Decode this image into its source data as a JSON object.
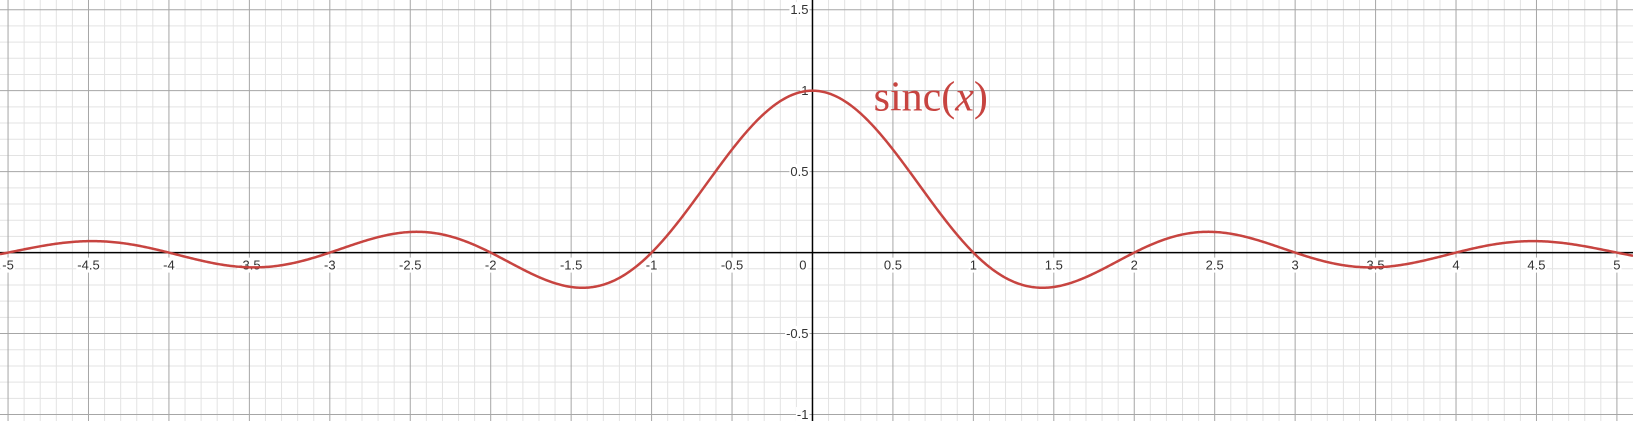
{
  "chart_data": {
    "type": "line",
    "xlim": [
      -5.05,
      5.1
    ],
    "ylim": [
      -1.04,
      1.56
    ],
    "grid": true,
    "minor_grid": true,
    "major_step": 0.5,
    "minor_step": 0.1,
    "x_ticks": [
      -5,
      -4.5,
      -4,
      -3.5,
      -3,
      -2.5,
      -2,
      -1.5,
      -1,
      -0.5,
      0,
      0.5,
      1,
      1.5,
      2,
      2.5,
      3,
      3.5,
      4,
      4.5,
      5
    ],
    "y_ticks": [
      -1,
      -0.5,
      0.5,
      1,
      1.5
    ],
    "x_tick_labels": [
      "-5",
      "-4.5",
      "-4",
      "-3.5",
      "-3",
      "-2.5",
      "-2",
      "-1.5",
      "-1",
      "-0.5",
      "0",
      "0.5",
      "1",
      "1.5",
      "2",
      "2.5",
      "3",
      "3.5",
      "4",
      "4.5",
      "5"
    ],
    "y_tick_labels": [
      "-1",
      "-0.5",
      "0.5",
      "1",
      "1.5"
    ],
    "series": [
      {
        "name": "sinc(x)",
        "function": "sin(pi*x)/(pi*x)",
        "color": "#c74440",
        "x": [
          -5,
          -4.5,
          -4,
          -3.5,
          -3,
          -2.5,
          -2,
          -1.43,
          -1,
          -0.5,
          0,
          0.5,
          1,
          1.43,
          2,
          2.5,
          3,
          3.5,
          4,
          4.5,
          5
        ],
        "y": [
          0,
          0.0707,
          0,
          -0.0909,
          0,
          0.1273,
          0,
          -0.2172,
          0,
          0.6366,
          1,
          0.6366,
          0,
          -0.2172,
          0,
          0.1273,
          0,
          -0.0909,
          0,
          0.0707,
          0
        ]
      }
    ],
    "annotations": [
      {
        "text_main": "sinc(",
        "text_var": "x",
        "text_close": ")",
        "color": "#c74440",
        "anchor": [
          0.38,
          1.0
        ]
      }
    ],
    "colors": {
      "major_grid": "#a6a6a6",
      "minor_grid": "#e3e3e3",
      "axis": "#000000",
      "curve": "#c74440"
    }
  }
}
